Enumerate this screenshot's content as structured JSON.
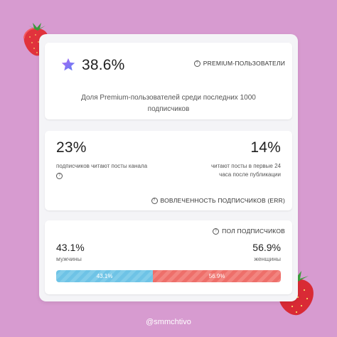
{
  "premium": {
    "value": "38.6%",
    "header": "PREMIUM-ПОЛЬЗОВАТЕЛИ",
    "description": "Доля Premium-пользователей среди последних 1000 подписчиков"
  },
  "engagement": {
    "left_value": "23%",
    "left_text": "подписчиков читают посты канала",
    "right_value": "14%",
    "right_text": "читают посты в первые 24 часа после публикации",
    "header": "ВОВЛЕЧЕННОСТЬ ПОДПИСЧИКОВ (ERR)"
  },
  "gender": {
    "header": "ПОЛ ПОДПИСЧИКОВ",
    "male_value": "43.1%",
    "male_label": "мужчины",
    "female_value": "56.9%",
    "female_label": "женщины",
    "male_share": 43.1,
    "female_share": 56.9,
    "bar_male_label": "43.1%",
    "bar_female_label": "56.9%",
    "male_color": "#6ec3e6",
    "female_color": "#ee6f6a"
  },
  "footer": {
    "handle": "@smmchtivo"
  },
  "icons": [
    "strawberry-icon",
    "star-icon",
    "info-icon"
  ],
  "colors": {
    "background": "#d79bd0",
    "card": "#ffffff",
    "accent_purple": "#8e5cf2"
  }
}
